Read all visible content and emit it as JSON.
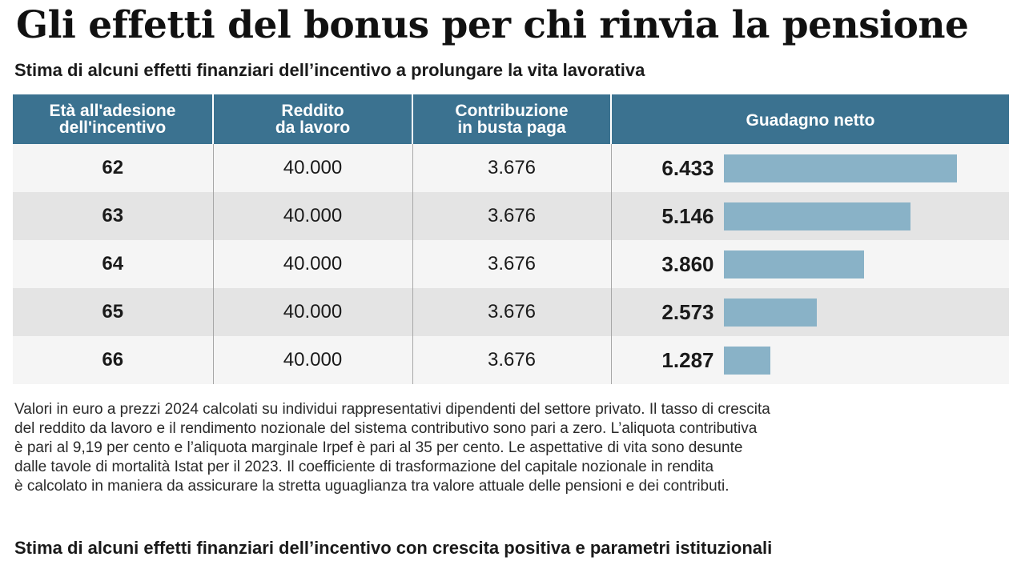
{
  "title": "Gli effetti del bonus per chi rinvia la pensione",
  "subtitle": "Stima di alcuni effetti finanziari dell’incentivo a prolungare la vita lavorativa",
  "table": {
    "headers": [
      [
        "Età all'adesione",
        "dell'incentivo"
      ],
      [
        "Reddito",
        "da lavoro"
      ],
      [
        "Contribuzione",
        "in busta paga"
      ],
      [
        "Guadagno netto"
      ]
    ],
    "rows": [
      {
        "age": "62",
        "income": "40.000",
        "contribution": "3.676",
        "gain": "6.433"
      },
      {
        "age": "63",
        "income": "40.000",
        "contribution": "3.676",
        "gain": "5.146"
      },
      {
        "age": "64",
        "income": "40.000",
        "contribution": "3.676",
        "gain": "3.860"
      },
      {
        "age": "65",
        "income": "40.000",
        "contribution": "3.676",
        "gain": "2.573"
      },
      {
        "age": "66",
        "income": "40.000",
        "contribution": "3.676",
        "gain": "1.287"
      }
    ]
  },
  "notes": [
    "Valori in euro a prezzi 2024 calcolati su individui rappresentativi dipendenti del settore privato. Il tasso di crescita",
    "del reddito da lavoro e il rendimento nozionale del sistema contributivo sono pari a zero. L’aliquota contributiva",
    "è pari al 9,19 per cento e l’aliquota marginale Irpef è pari al 35 per cento. Le aspettative di vita sono desunte",
    "dalle tavole di mortalità Istat per il 2023. Il coefficiente di trasformazione del capitale nozionale in rendita",
    "è calcolato in maniera da assicurare la stretta uguaglianza tra valore attuale delle pensioni e dei contributi."
  ],
  "subtitle2": "Stima di alcuni effetti finanziari dell’incentivo con crescita positiva e parametri istituzionali",
  "colors": {
    "header_bg": "#3b7290",
    "bar": "#89b2c7",
    "row_light": "#f5f5f5",
    "row_dark": "#e4e4e4"
  },
  "chart_data": {
    "type": "bar",
    "orientation": "horizontal",
    "title": "Gli effetti del bonus per chi rinvia la pensione",
    "subtitle": "Stima di alcuni effetti finanziari dell’incentivo a prolungare la vita lavorativa",
    "categories": [
      "62",
      "63",
      "64",
      "65",
      "66"
    ],
    "series": [
      {
        "name": "Guadagno netto",
        "values": [
          6433,
          5146,
          3860,
          2573,
          1287
        ]
      }
    ],
    "xlim": [
      0,
      6433
    ],
    "grid": false,
    "legend": "none"
  }
}
